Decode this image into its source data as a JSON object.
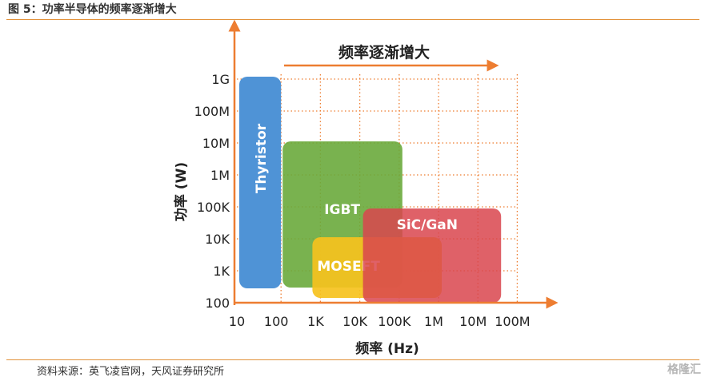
{
  "header": {
    "figure_title": "图 5：功率半导体的频率逐渐增大"
  },
  "footer": {
    "source": "资料来源：英飞凌官网，天风证券研究所",
    "watermark": "格隆汇"
  },
  "chart_data": {
    "type": "area",
    "title": "",
    "annotation": "频率逐渐增大",
    "xlabel": "频率 (Hz)",
    "ylabel": "功率 (W)",
    "x_ticks": [
      "10",
      "100",
      "1K",
      "10K",
      "100K",
      "1M",
      "10M",
      "100M"
    ],
    "y_ticks": [
      "100",
      "1K",
      "10K",
      "100K",
      "1M",
      "10M",
      "100M",
      "1G"
    ],
    "x_scale": "log",
    "y_scale": "log",
    "grid": true,
    "series": [
      {
        "name": "Thyristor",
        "x_range": [
          "10",
          "100"
        ],
        "y_range": [
          "100",
          "1G"
        ],
        "color": "#4f93d6"
      },
      {
        "name": "IGBT",
        "x_range": [
          "100",
          "100K"
        ],
        "y_range": [
          "100",
          "10M"
        ],
        "color": "#6aaa3c"
      },
      {
        "name": "MOSEFT",
        "x_range": [
          "1K",
          "1M"
        ],
        "y_range": [
          "100",
          "10K"
        ],
        "color": "#f6c21e"
      },
      {
        "name": "SiC/GaN",
        "x_range": [
          "10K",
          "10M"
        ],
        "y_range": [
          "100",
          "100K"
        ],
        "color": "#d9454e"
      }
    ]
  }
}
